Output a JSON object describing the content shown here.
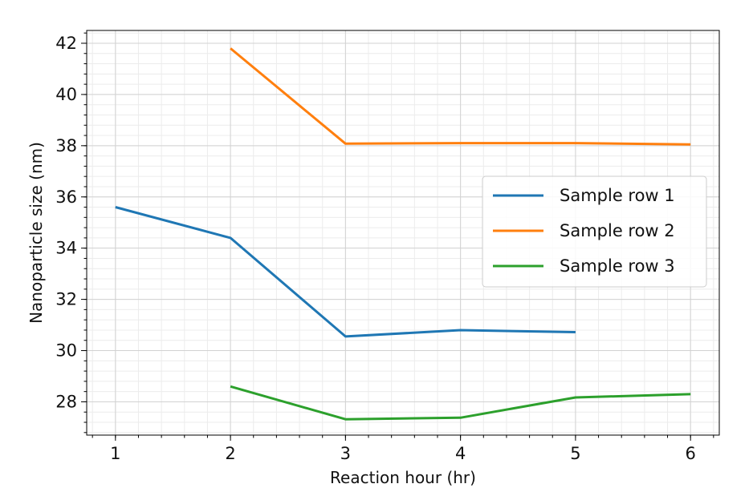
{
  "chart_data": {
    "type": "line",
    "title": "",
    "xlabel": "Reaction hour (hr)",
    "ylabel": "Nanoparticle size (nm)",
    "xlim": [
      0.75,
      6.25
    ],
    "ylim": [
      26.7,
      42.5
    ],
    "xticks": [
      1,
      2,
      3,
      4,
      5,
      6
    ],
    "yticks": [
      28,
      30,
      32,
      34,
      36,
      38,
      40,
      42
    ],
    "grid": {
      "major": true,
      "minor": true
    },
    "legend_position": "right",
    "series": [
      {
        "name": "Sample row 1",
        "color": "#1f77b4",
        "x": [
          1,
          2,
          3,
          4,
          5
        ],
        "y": [
          35.6,
          34.4,
          30.55,
          30.8,
          30.72
        ]
      },
      {
        "name": "Sample row 2",
        "color": "#ff7f0e",
        "x": [
          2,
          3,
          4,
          5,
          6
        ],
        "y": [
          41.8,
          38.08,
          38.1,
          38.1,
          38.05
        ]
      },
      {
        "name": "Sample row 3",
        "color": "#2ca02c",
        "x": [
          2,
          3,
          4,
          5,
          6
        ],
        "y": [
          28.6,
          27.32,
          27.38,
          28.17,
          28.3
        ]
      }
    ]
  }
}
